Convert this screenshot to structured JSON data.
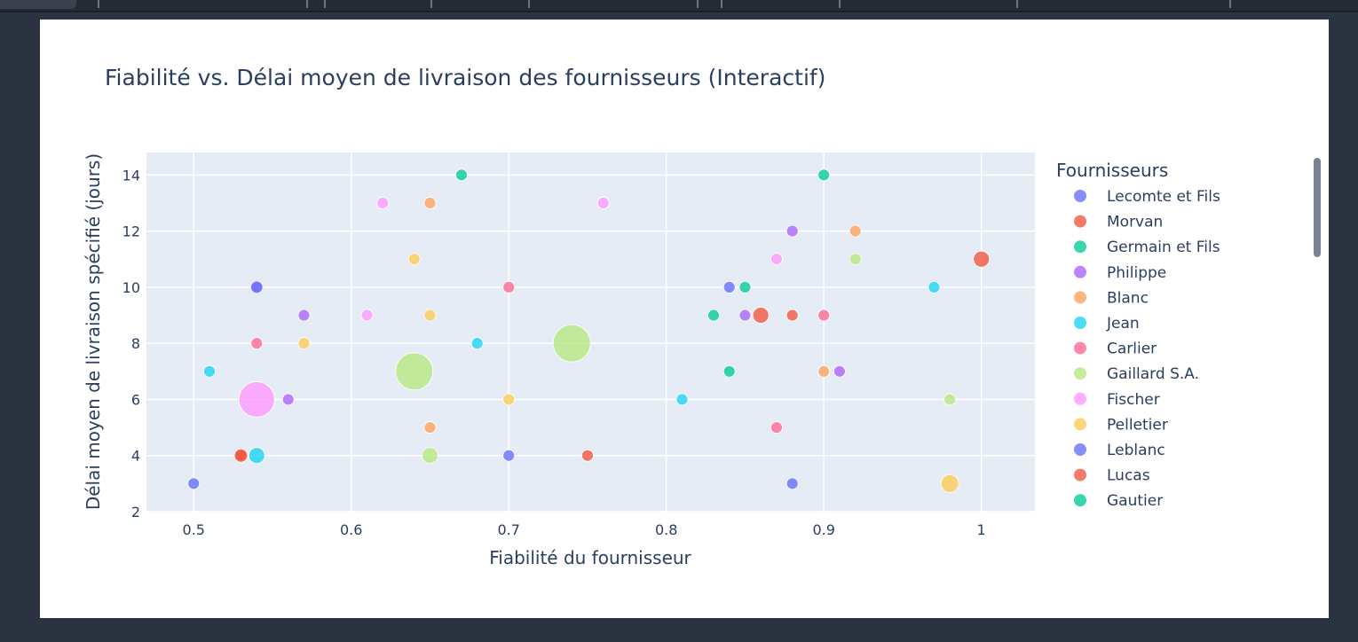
{
  "chart_data": {
    "type": "scatter",
    "title": "Fiabilité vs. Délai moyen de livraison des fournisseurs (Interactif)",
    "xlabel": "Fiabilité du fournisseur",
    "ylabel": "Délai moyen de livraison spécifié (jours)",
    "xlim": [
      0.47,
      1.034
    ],
    "ylim": [
      2,
      14.8
    ],
    "x_ticks": [
      "0.5",
      "0.6",
      "0.7",
      "0.8",
      "0.9",
      "1"
    ],
    "y_ticks": [
      "2",
      "4",
      "6",
      "8",
      "10",
      "12",
      "14"
    ],
    "grid": true,
    "legend_title": "Fournisseurs",
    "legend_position": "right",
    "series": [
      {
        "name": "Lecomte et Fils",
        "color": "#636efa",
        "points": [
          [
            0.5,
            3
          ],
          [
            0.7,
            4
          ],
          [
            0.84,
            10
          ],
          [
            0.88,
            3
          ]
        ]
      },
      {
        "name": "Morvan",
        "color": "#ef553b",
        "points": [
          [
            0.53,
            4
          ],
          [
            0.75,
            4
          ],
          [
            0.86,
            9
          ],
          [
            0.88,
            9
          ],
          [
            1.0,
            11
          ]
        ]
      },
      {
        "name": "Germain et Fils",
        "color": "#00cc96",
        "points": [
          [
            0.67,
            14
          ],
          [
            0.83,
            9
          ],
          [
            0.84,
            7
          ],
          [
            0.85,
            10
          ],
          [
            0.9,
            14
          ]
        ]
      },
      {
        "name": "Philippe",
        "color": "#ab63fa",
        "points": [
          [
            0.54,
            10
          ],
          [
            0.56,
            6
          ],
          [
            0.57,
            9
          ],
          [
            0.85,
            9
          ],
          [
            0.88,
            12
          ],
          [
            0.91,
            7
          ]
        ]
      },
      {
        "name": "Blanc",
        "color": "#ffa15a",
        "points": [
          [
            0.65,
            13
          ],
          [
            0.65,
            5
          ],
          [
            0.9,
            7
          ],
          [
            0.92,
            12
          ]
        ]
      },
      {
        "name": "Jean",
        "color": "#19d3f3",
        "points": [
          [
            0.51,
            7
          ],
          [
            0.54,
            4
          ],
          [
            0.68,
            8
          ],
          [
            0.81,
            6
          ],
          [
            0.97,
            10
          ]
        ]
      },
      {
        "name": "Carlier",
        "color": "#ff6692",
        "points": [
          [
            0.54,
            8
          ],
          [
            0.7,
            10
          ],
          [
            0.87,
            5
          ],
          [
            0.9,
            9
          ]
        ]
      },
      {
        "name": "Gaillard S.A.",
        "color": "#b6e880",
        "points": [
          [
            0.64,
            7
          ],
          [
            0.65,
            4
          ],
          [
            0.74,
            8
          ],
          [
            0.92,
            11
          ],
          [
            0.98,
            6
          ]
        ]
      },
      {
        "name": "Fischer",
        "color": "#ff97ff",
        "points": [
          [
            0.54,
            6
          ],
          [
            0.61,
            9
          ],
          [
            0.62,
            13
          ],
          [
            0.76,
            13
          ],
          [
            0.87,
            11
          ]
        ]
      },
      {
        "name": "Pelletier",
        "color": "#fecb52",
        "points": [
          [
            0.57,
            8
          ],
          [
            0.64,
            11
          ],
          [
            0.65,
            9
          ],
          [
            0.7,
            6
          ],
          [
            0.98,
            3
          ]
        ]
      },
      {
        "name": "Leblanc",
        "color": "#636efa",
        "points": [
          [
            0.54,
            10
          ]
        ]
      },
      {
        "name": "Lucas",
        "color": "#ef553b",
        "points": [
          [
            0.53,
            4
          ]
        ]
      },
      {
        "name": "Gautier",
        "color": "#00cc96",
        "points": []
      }
    ]
  }
}
